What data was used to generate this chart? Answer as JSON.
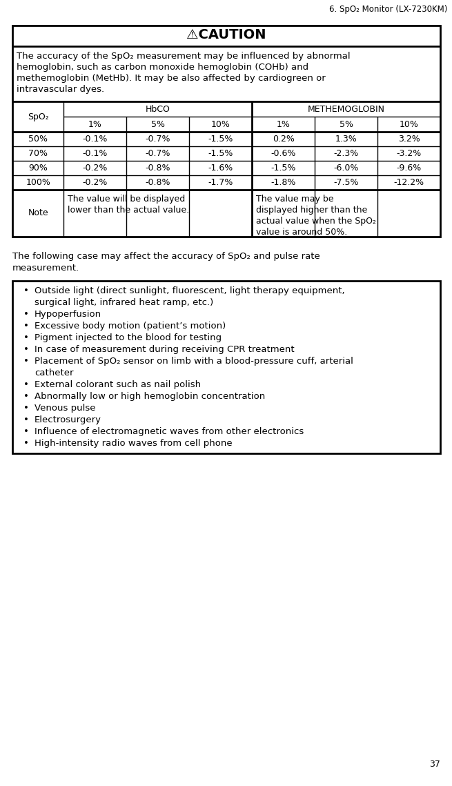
{
  "page_title": "6. SpO₂ Monitor (LX-7230KM)",
  "page_number": "37",
  "caution_text_line1": "The accuracy of the SpO₂ measurement may be influenced by abnormal",
  "caution_text_line2": "hemoglobin, such as carbon monoxide hemoglobin (COHb) and",
  "caution_text_line3": "methemoglobin (MetHb). It may be also affected by cardiogreen or",
  "caution_text_line4": "intravascular dyes.",
  "table_data": [
    [
      "50%",
      "-0.1%",
      "-0.7%",
      "-1.5%",
      "0.2%",
      "1.3%",
      "3.2%"
    ],
    [
      "70%",
      "-0.1%",
      "-0.7%",
      "-1.5%",
      "-0.6%",
      "-2.3%",
      "-3.2%"
    ],
    [
      "90%",
      "-0.2%",
      "-0.8%",
      "-1.6%",
      "-1.5%",
      "-6.0%",
      "-9.6%"
    ],
    [
      "100%",
      "-0.2%",
      "-0.8%",
      "-1.7%",
      "-1.8%",
      "-7.5%",
      "-12.2%"
    ]
  ],
  "note_label": "Note",
  "note_left_line1": "The value will be displayed",
  "note_left_line2": "lower than the actual value.",
  "note_right_line1": "The value may be",
  "note_right_line2": "displayed higher than the",
  "note_right_line3": "actual value when the SpO₂",
  "note_right_line4": "value is around 50%.",
  "following_line1": "The following case may affect the accuracy of SpO₂ and pulse rate",
  "following_line2": "measurement.",
  "bullet_items": [
    [
      "Outside light (direct sunlight, fluorescent, light therapy equipment,",
      "surgical light, infrared heat ramp, etc.)"
    ],
    [
      "Hypoperfusion"
    ],
    [
      "Excessive body motion (patient’s motion)"
    ],
    [
      "Pigment injected to the blood for testing"
    ],
    [
      "In case of measurement during receiving CPR treatment"
    ],
    [
      "Placement of SpO₂ sensor on limb with a blood-pressure cuff, arterial",
      "catheter"
    ],
    [
      "External colorant such as nail polish"
    ],
    [
      "Abnormally low or high hemoglobin concentration"
    ],
    [
      "Venous pulse"
    ],
    [
      "Electrosurgery"
    ],
    [
      "Influence of electromagnetic waves from other electronics"
    ],
    [
      "High-intensity radio waves from cell phone"
    ]
  ],
  "bg_color": "#ffffff",
  "text_color": "#000000",
  "border_color": "#000000"
}
